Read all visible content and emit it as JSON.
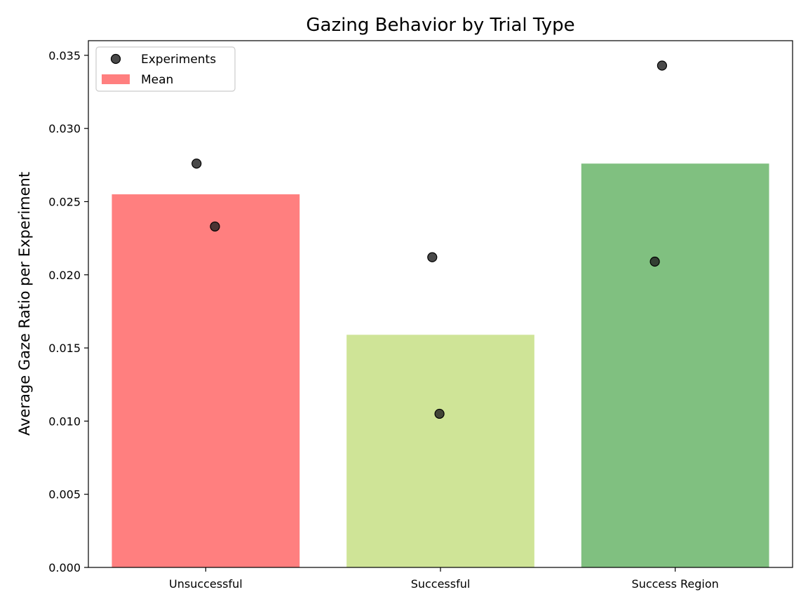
{
  "chart_data": {
    "type": "bar",
    "title": "Gazing Behavior by Trial Type",
    "xlabel": "",
    "ylabel": "Average Gaze Ratio per Experiment",
    "categories": [
      "Unsuccessful",
      "Successful",
      "Success Region"
    ],
    "values": [
      0.0255,
      0.0159,
      0.0276
    ],
    "bar_colors": [
      "#ff7f7f",
      "#cfe497",
      "#80c080"
    ],
    "points": [
      {
        "category": "Unsuccessful",
        "values": [
          0.0276,
          0.0233
        ]
      },
      {
        "category": "Successful",
        "values": [
          0.0212,
          0.0105
        ]
      },
      {
        "category": "Success Region",
        "values": [
          0.0343,
          0.0209
        ]
      }
    ],
    "point_color": "#222222",
    "ylim": [
      0,
      0.036
    ],
    "yticks": [
      0.0,
      0.005,
      0.01,
      0.015,
      0.02,
      0.025,
      0.03,
      0.035
    ],
    "ytick_labels": [
      "0.000",
      "0.005",
      "0.010",
      "0.015",
      "0.020",
      "0.025",
      "0.030",
      "0.035"
    ],
    "grid": false,
    "legend": {
      "position": "top-left",
      "entries": [
        {
          "label": "Experiments",
          "kind": "marker"
        },
        {
          "label": "Mean",
          "kind": "patch",
          "color": "#ff7f7f"
        }
      ]
    }
  }
}
